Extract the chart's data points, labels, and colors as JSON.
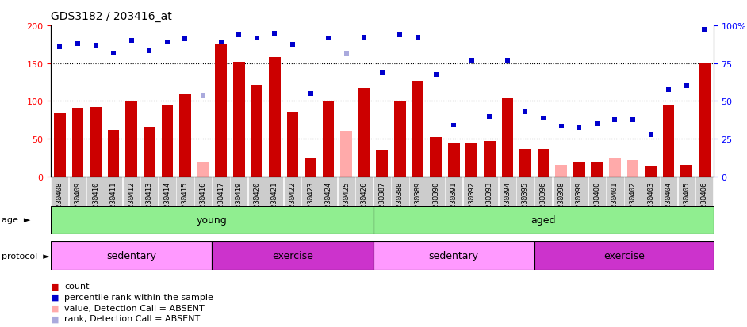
{
  "title": "GDS3182 / 203416_at",
  "samples": [
    "GSM230408",
    "GSM230409",
    "GSM230410",
    "GSM230411",
    "GSM230412",
    "GSM230413",
    "GSM230414",
    "GSM230415",
    "GSM230416",
    "GSM230417",
    "GSM230419",
    "GSM230420",
    "GSM230421",
    "GSM230422",
    "GSM230423",
    "GSM230424",
    "GSM230425",
    "GSM230426",
    "GSM230387",
    "GSM230388",
    "GSM230389",
    "GSM230390",
    "GSM230391",
    "GSM230392",
    "GSM230393",
    "GSM230394",
    "GSM230395",
    "GSM230396",
    "GSM230398",
    "GSM230399",
    "GSM230400",
    "GSM230401",
    "GSM230402",
    "GSM230403",
    "GSM230404",
    "GSM230405",
    "GSM230406"
  ],
  "counts": [
    84,
    91,
    92,
    61,
    100,
    66,
    95,
    109,
    20,
    176,
    152,
    121,
    158,
    86,
    25,
    100,
    60,
    117,
    34,
    100,
    127,
    52,
    45,
    44,
    47,
    104,
    36,
    36,
    15,
    18,
    18,
    25,
    22,
    13,
    95,
    15,
    150
  ],
  "absent_mask": [
    false,
    false,
    false,
    false,
    false,
    false,
    false,
    false,
    true,
    false,
    false,
    false,
    false,
    false,
    false,
    false,
    true,
    false,
    false,
    false,
    false,
    false,
    false,
    false,
    false,
    false,
    false,
    false,
    true,
    false,
    false,
    true,
    true,
    false,
    false,
    false,
    false
  ],
  "ranks": [
    172,
    176,
    174,
    163,
    180,
    166,
    178,
    182,
    107,
    178,
    188,
    183,
    190,
    175,
    110,
    183,
    162,
    184,
    137,
    188,
    184,
    135,
    68,
    154,
    79,
    154,
    86,
    77,
    67,
    65,
    70,
    75,
    75,
    55,
    115,
    120,
    195
  ],
  "rank_absent_mask": [
    false,
    false,
    false,
    false,
    false,
    false,
    false,
    false,
    true,
    false,
    false,
    false,
    false,
    false,
    false,
    false,
    true,
    false,
    false,
    false,
    false,
    false,
    false,
    false,
    false,
    false,
    false,
    false,
    false,
    false,
    false,
    false,
    false,
    false,
    false,
    false,
    false
  ],
  "age_groups": [
    {
      "label": "young",
      "start": 0,
      "end": 18,
      "color": "#90EE90"
    },
    {
      "label": "aged",
      "start": 18,
      "end": 37,
      "color": "#90EE90"
    }
  ],
  "protocol_groups": [
    {
      "label": "sedentary",
      "start": 0,
      "end": 9,
      "color": "#FF99FF"
    },
    {
      "label": "exercise",
      "start": 9,
      "end": 18,
      "color": "#CC33CC"
    },
    {
      "label": "sedentary",
      "start": 18,
      "end": 27,
      "color": "#FF99FF"
    },
    {
      "label": "exercise",
      "start": 27,
      "end": 37,
      "color": "#CC33CC"
    }
  ],
  "bar_color": "#CC0000",
  "bar_absent_color": "#FFAAAA",
  "rank_color": "#0000CC",
  "rank_absent_color": "#AAAADD",
  "ylim_left": [
    0,
    200
  ],
  "ylim_right": [
    0,
    100
  ],
  "yticks_left": [
    0,
    50,
    100,
    150,
    200
  ],
  "yticks_right": [
    0,
    25,
    50,
    75,
    100
  ],
  "hgrid": [
    50,
    100,
    150
  ],
  "n": 37
}
